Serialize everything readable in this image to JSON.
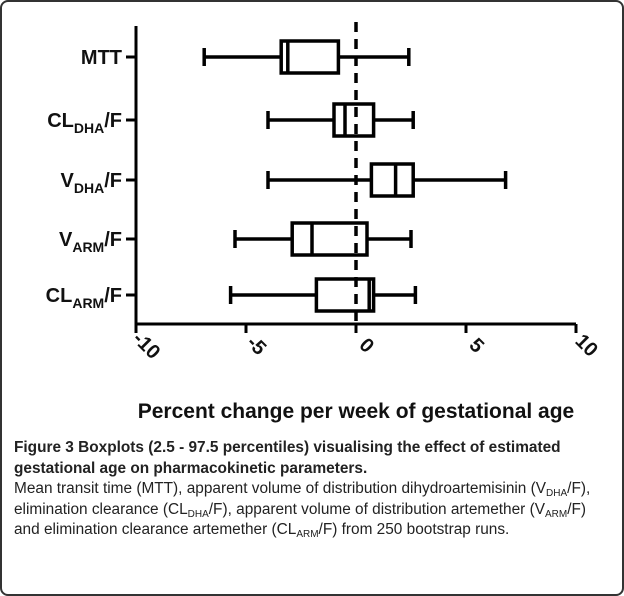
{
  "chart_data": {
    "type": "boxplot",
    "categories": [
      {
        "main": "MTT"
      },
      {
        "main": "CL",
        "sub": "DHA",
        "tail": "/F"
      },
      {
        "main": "V",
        "sub": "DHA",
        "tail": "/F"
      },
      {
        "main": "V",
        "sub": "ARM",
        "tail": "/F"
      },
      {
        "main": "CL",
        "sub": "ARM",
        "tail": "/F"
      }
    ],
    "low": [
      -6.9,
      -4.0,
      -4.0,
      -5.5,
      -5.7
    ],
    "q1": [
      -3.4,
      -1.0,
      0.7,
      -2.9,
      -1.8
    ],
    "median": [
      -3.1,
      -0.5,
      1.8,
      -2.0,
      0.6
    ],
    "q3": [
      -0.8,
      0.8,
      2.6,
      0.5,
      0.8
    ],
    "high": [
      2.4,
      2.6,
      6.8,
      2.5,
      2.7
    ],
    "xlim": [
      -10,
      10
    ],
    "xticks": [
      -10,
      -5,
      0,
      5,
      10
    ],
    "reference_line": 0,
    "xlabel": "Percent change per week of gestational age",
    "color": "#000000"
  },
  "caption": {
    "label": "Figure 3",
    "title": "Boxplots (2.5 - 97.5 percentiles) visualising the effect of estimated gestational age on pharmacokinetic parameters.",
    "body": [
      "Mean transit time (MTT), apparent volume of distribution dihydroartemisinin (V",
      {
        "sub": "DHA"
      },
      "/F), elimination clearance (CL",
      {
        "sub": "DHA"
      },
      "/F), apparent volume of distribution artemether (V",
      {
        "sub": "ARM"
      },
      "/F) and elimination clearance artemether (CL",
      {
        "sub": "ARM"
      },
      "/F) from 250 bootstrap runs."
    ]
  }
}
